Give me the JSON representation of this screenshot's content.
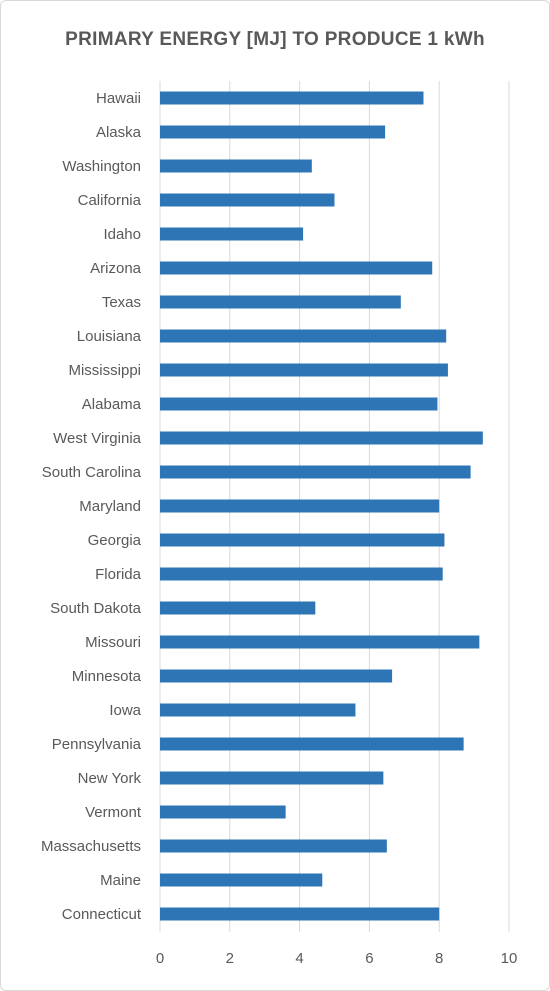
{
  "chart_data": {
    "type": "bar",
    "orientation": "horizontal",
    "title": "PRIMARY ENERGY [MJ] TO PRODUCE 1 kWh",
    "xlabel": "",
    "ylabel": "",
    "xlim": [
      0,
      10
    ],
    "x_ticks": [
      "0",
      "2",
      "4",
      "6",
      "8",
      "10"
    ],
    "grid": true,
    "legend": "none",
    "bar_color": "#2e75b6",
    "categories": [
      "Hawaii",
      "Alaska",
      "Washington",
      "California",
      "Idaho",
      "Arizona",
      "Texas",
      "Louisiana",
      "Mississippi",
      "Alabama",
      "West Virginia",
      "South Carolina",
      "Maryland",
      "Georgia",
      "Florida",
      "South Dakota",
      "Missouri",
      "Minnesota",
      "Iowa",
      "Pennsylvania",
      "New York",
      "Vermont",
      "Massachusetts",
      "Maine",
      "Connecticut"
    ],
    "values": [
      7.55,
      6.45,
      4.35,
      5.0,
      4.1,
      7.8,
      6.9,
      8.2,
      8.25,
      7.95,
      9.25,
      8.9,
      8.0,
      8.15,
      8.1,
      4.45,
      9.15,
      6.65,
      5.6,
      8.7,
      6.4,
      3.6,
      6.5,
      4.65,
      8.0
    ]
  }
}
